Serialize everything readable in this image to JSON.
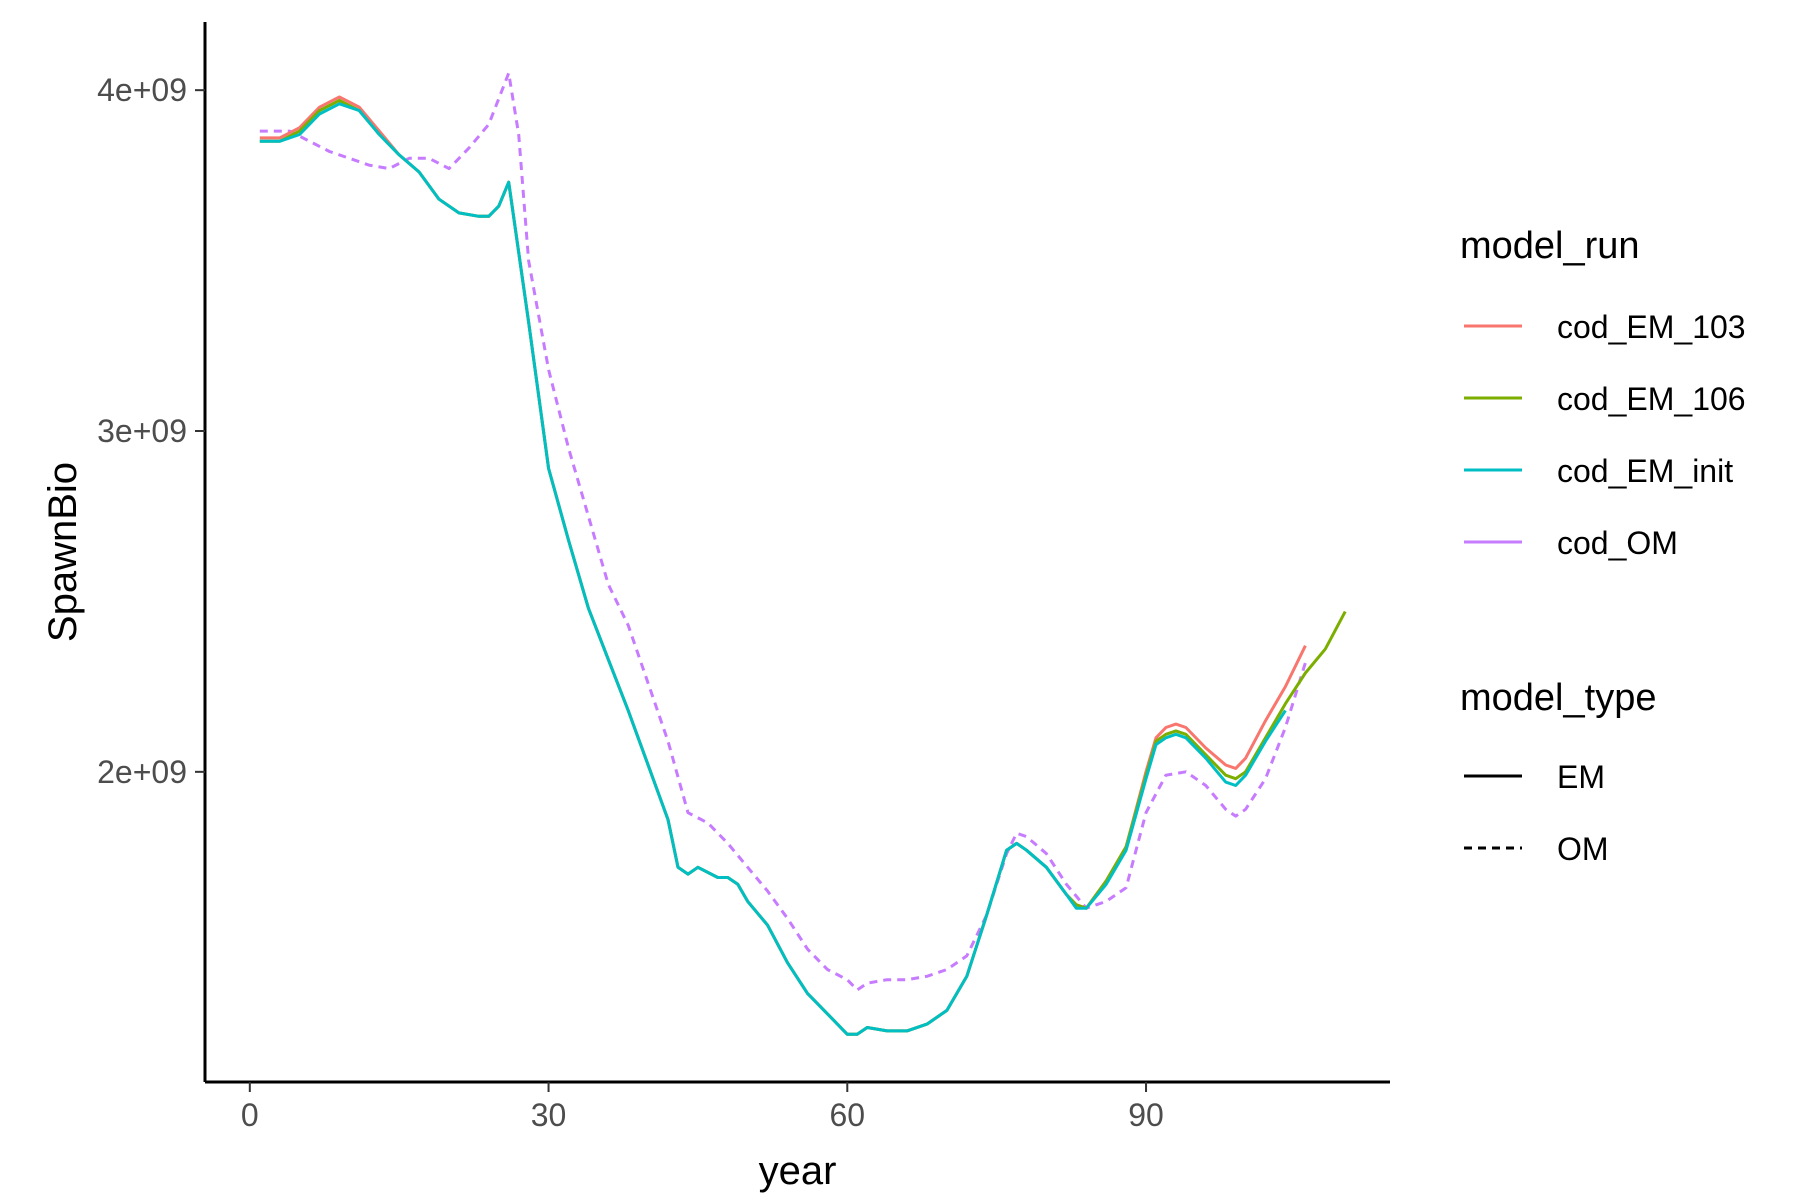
{
  "chart_data": {
    "type": "line",
    "title": "",
    "xlabel": "year",
    "ylabel": "SpawnBio",
    "xlim": [
      -4.5,
      114.5
    ],
    "ylim": [
      1090000000,
      4200000000
    ],
    "x_ticks": [
      0,
      30,
      60,
      90
    ],
    "x_tick_labels": [
      "0",
      "30",
      "60",
      "90"
    ],
    "y_ticks": [
      2000000000,
      3000000000,
      4000000000
    ],
    "y_tick_labels": [
      "2e+09",
      "3e+09",
      "4e+09"
    ],
    "grid": false,
    "legend_position": "right",
    "legends": [
      {
        "title": "model_run",
        "entries": [
          {
            "label": "cod_EM_103",
            "color": "#F8766D"
          },
          {
            "label": "cod_EM_106",
            "color": "#7CAE00"
          },
          {
            "label": "cod_EM_init",
            "color": "#00BFC4"
          },
          {
            "label": "cod_OM",
            "color": "#C77CFF"
          }
        ]
      },
      {
        "title": "model_type",
        "entries": [
          {
            "label": "EM",
            "dash": "solid"
          },
          {
            "label": "OM",
            "dash": "dashed"
          }
        ]
      }
    ],
    "series": [
      {
        "name": "cod_OM",
        "model_type": "OM",
        "color": "#C77CFF",
        "dash": true,
        "points": [
          [
            1,
            3880000000
          ],
          [
            2,
            3880000000
          ],
          [
            3,
            3880000000
          ],
          [
            4,
            3880000000
          ],
          [
            6,
            3850000000
          ],
          [
            8,
            3820000000
          ],
          [
            10,
            3800000000
          ],
          [
            12,
            3780000000
          ],
          [
            14,
            3770000000
          ],
          [
            16,
            3800000000
          ],
          [
            18,
            3800000000
          ],
          [
            20,
            3770000000
          ],
          [
            22,
            3830000000
          ],
          [
            24,
            3900000000
          ],
          [
            26,
            4050000000
          ],
          [
            27,
            3870000000
          ],
          [
            28,
            3500000000
          ],
          [
            30,
            3180000000
          ],
          [
            32,
            2950000000
          ],
          [
            34,
            2750000000
          ],
          [
            36,
            2550000000
          ],
          [
            38,
            2430000000
          ],
          [
            40,
            2260000000
          ],
          [
            42,
            2090000000
          ],
          [
            44,
            1880000000
          ],
          [
            46,
            1850000000
          ],
          [
            48,
            1790000000
          ],
          [
            50,
            1720000000
          ],
          [
            52,
            1650000000
          ],
          [
            54,
            1570000000
          ],
          [
            56,
            1480000000
          ],
          [
            58,
            1420000000
          ],
          [
            60,
            1390000000
          ],
          [
            61,
            1360000000
          ],
          [
            62,
            1380000000
          ],
          [
            64,
            1390000000
          ],
          [
            66,
            1390000000
          ],
          [
            68,
            1400000000
          ],
          [
            70,
            1420000000
          ],
          [
            72,
            1460000000
          ],
          [
            74,
            1580000000
          ],
          [
            76,
            1760000000
          ],
          [
            77,
            1820000000
          ],
          [
            78,
            1810000000
          ],
          [
            80,
            1760000000
          ],
          [
            82,
            1670000000
          ],
          [
            84,
            1600000000
          ],
          [
            86,
            1620000000
          ],
          [
            88,
            1660000000
          ],
          [
            90,
            1880000000
          ],
          [
            92,
            1990000000
          ],
          [
            94,
            2000000000
          ],
          [
            96,
            1960000000
          ],
          [
            98,
            1890000000
          ],
          [
            99,
            1870000000
          ],
          [
            100,
            1890000000
          ],
          [
            102,
            1980000000
          ],
          [
            104,
            2130000000
          ],
          [
            106,
            2320000000
          ]
        ]
      },
      {
        "name": "cod_EM_103",
        "model_type": "EM",
        "color": "#F8766D",
        "dash": false,
        "points": [
          [
            1,
            3860000000
          ],
          [
            3,
            3860000000
          ],
          [
            5,
            3890000000
          ],
          [
            7,
            3950000000
          ],
          [
            9,
            3980000000
          ],
          [
            11,
            3950000000
          ],
          [
            13,
            3880000000
          ],
          [
            15,
            3810000000
          ],
          [
            17,
            3760000000
          ],
          [
            19,
            3680000000
          ],
          [
            21,
            3640000000
          ],
          [
            23,
            3630000000
          ],
          [
            24,
            3630000000
          ],
          [
            25,
            3660000000
          ],
          [
            26,
            3730000000
          ],
          [
            28,
            3320000000
          ],
          [
            30,
            2890000000
          ],
          [
            32,
            2680000000
          ],
          [
            34,
            2480000000
          ],
          [
            36,
            2330000000
          ],
          [
            38,
            2180000000
          ],
          [
            40,
            2020000000
          ],
          [
            42,
            1860000000
          ],
          [
            43,
            1720000000
          ],
          [
            44,
            1700000000
          ],
          [
            45,
            1720000000
          ],
          [
            47,
            1690000000
          ],
          [
            48,
            1690000000
          ],
          [
            49,
            1670000000
          ],
          [
            50,
            1620000000
          ],
          [
            52,
            1550000000
          ],
          [
            54,
            1440000000
          ],
          [
            56,
            1350000000
          ],
          [
            58,
            1290000000
          ],
          [
            60,
            1230000000
          ],
          [
            61,
            1230000000
          ],
          [
            62,
            1250000000
          ],
          [
            64,
            1240000000
          ],
          [
            66,
            1240000000
          ],
          [
            68,
            1260000000
          ],
          [
            70,
            1300000000
          ],
          [
            72,
            1400000000
          ],
          [
            74,
            1580000000
          ],
          [
            76,
            1770000000
          ],
          [
            77,
            1790000000
          ],
          [
            78,
            1770000000
          ],
          [
            80,
            1720000000
          ],
          [
            82,
            1640000000
          ],
          [
            83,
            1610000000
          ],
          [
            84,
            1600000000
          ],
          [
            86,
            1680000000
          ],
          [
            88,
            1780000000
          ],
          [
            90,
            2000000000
          ],
          [
            91,
            2100000000
          ],
          [
            92,
            2130000000
          ],
          [
            93,
            2140000000
          ],
          [
            94,
            2130000000
          ],
          [
            96,
            2070000000
          ],
          [
            98,
            2020000000
          ],
          [
            99,
            2010000000
          ],
          [
            100,
            2040000000
          ],
          [
            102,
            2150000000
          ],
          [
            104,
            2250000000
          ],
          [
            106,
            2370000000
          ]
        ]
      },
      {
        "name": "cod_EM_106",
        "model_type": "EM",
        "color": "#7CAE00",
        "dash": false,
        "points": [
          [
            1,
            3850000000
          ],
          [
            3,
            3850000000
          ],
          [
            5,
            3880000000
          ],
          [
            7,
            3940000000
          ],
          [
            9,
            3970000000
          ],
          [
            11,
            3940000000
          ],
          [
            13,
            3870000000
          ],
          [
            15,
            3810000000
          ],
          [
            17,
            3760000000
          ],
          [
            19,
            3680000000
          ],
          [
            21,
            3640000000
          ],
          [
            23,
            3630000000
          ],
          [
            24,
            3630000000
          ],
          [
            25,
            3660000000
          ],
          [
            26,
            3730000000
          ],
          [
            28,
            3320000000
          ],
          [
            30,
            2890000000
          ],
          [
            32,
            2680000000
          ],
          [
            34,
            2480000000
          ],
          [
            36,
            2330000000
          ],
          [
            38,
            2180000000
          ],
          [
            40,
            2020000000
          ],
          [
            42,
            1860000000
          ],
          [
            43,
            1720000000
          ],
          [
            44,
            1700000000
          ],
          [
            45,
            1720000000
          ],
          [
            47,
            1690000000
          ],
          [
            48,
            1690000000
          ],
          [
            49,
            1670000000
          ],
          [
            50,
            1620000000
          ],
          [
            52,
            1550000000
          ],
          [
            54,
            1440000000
          ],
          [
            56,
            1350000000
          ],
          [
            58,
            1290000000
          ],
          [
            60,
            1230000000
          ],
          [
            61,
            1230000000
          ],
          [
            62,
            1250000000
          ],
          [
            64,
            1240000000
          ],
          [
            66,
            1240000000
          ],
          [
            68,
            1260000000
          ],
          [
            70,
            1300000000
          ],
          [
            72,
            1400000000
          ],
          [
            74,
            1580000000
          ],
          [
            76,
            1770000000
          ],
          [
            77,
            1790000000
          ],
          [
            78,
            1770000000
          ],
          [
            80,
            1720000000
          ],
          [
            82,
            1640000000
          ],
          [
            83,
            1610000000
          ],
          [
            84,
            1600000000
          ],
          [
            86,
            1680000000
          ],
          [
            88,
            1780000000
          ],
          [
            90,
            1990000000
          ],
          [
            91,
            2090000000
          ],
          [
            92,
            2110000000
          ],
          [
            93,
            2120000000
          ],
          [
            94,
            2110000000
          ],
          [
            96,
            2050000000
          ],
          [
            98,
            1990000000
          ],
          [
            99,
            1980000000
          ],
          [
            100,
            2000000000
          ],
          [
            102,
            2100000000
          ],
          [
            104,
            2200000000
          ],
          [
            106,
            2290000000
          ],
          [
            108,
            2360000000
          ],
          [
            110,
            2470000000
          ]
        ]
      },
      {
        "name": "cod_EM_init",
        "model_type": "EM",
        "color": "#00BFC4",
        "dash": false,
        "points": [
          [
            1,
            3850000000
          ],
          [
            3,
            3850000000
          ],
          [
            5,
            3870000000
          ],
          [
            7,
            3930000000
          ],
          [
            9,
            3960000000
          ],
          [
            11,
            3940000000
          ],
          [
            13,
            3870000000
          ],
          [
            15,
            3810000000
          ],
          [
            17,
            3760000000
          ],
          [
            19,
            3680000000
          ],
          [
            21,
            3640000000
          ],
          [
            23,
            3630000000
          ],
          [
            24,
            3630000000
          ],
          [
            25,
            3660000000
          ],
          [
            26,
            3730000000
          ],
          [
            28,
            3320000000
          ],
          [
            30,
            2890000000
          ],
          [
            32,
            2680000000
          ],
          [
            34,
            2480000000
          ],
          [
            36,
            2330000000
          ],
          [
            38,
            2180000000
          ],
          [
            40,
            2020000000
          ],
          [
            42,
            1860000000
          ],
          [
            43,
            1720000000
          ],
          [
            44,
            1700000000
          ],
          [
            45,
            1720000000
          ],
          [
            47,
            1690000000
          ],
          [
            48,
            1690000000
          ],
          [
            49,
            1670000000
          ],
          [
            50,
            1620000000
          ],
          [
            52,
            1550000000
          ],
          [
            54,
            1440000000
          ],
          [
            56,
            1350000000
          ],
          [
            58,
            1290000000
          ],
          [
            60,
            1230000000
          ],
          [
            61,
            1230000000
          ],
          [
            62,
            1250000000
          ],
          [
            64,
            1240000000
          ],
          [
            66,
            1240000000
          ],
          [
            68,
            1260000000
          ],
          [
            70,
            1300000000
          ],
          [
            72,
            1400000000
          ],
          [
            74,
            1580000000
          ],
          [
            76,
            1770000000
          ],
          [
            77,
            1790000000
          ],
          [
            78,
            1770000000
          ],
          [
            80,
            1720000000
          ],
          [
            82,
            1640000000
          ],
          [
            83,
            1600000000
          ],
          [
            84,
            1600000000
          ],
          [
            86,
            1670000000
          ],
          [
            88,
            1770000000
          ],
          [
            90,
            1980000000
          ],
          [
            91,
            2080000000
          ],
          [
            92,
            2100000000
          ],
          [
            93,
            2110000000
          ],
          [
            94,
            2100000000
          ],
          [
            96,
            2040000000
          ],
          [
            98,
            1970000000
          ],
          [
            99,
            1960000000
          ],
          [
            100,
            1990000000
          ],
          [
            102,
            2090000000
          ],
          [
            104,
            2180000000
          ]
        ]
      }
    ]
  }
}
